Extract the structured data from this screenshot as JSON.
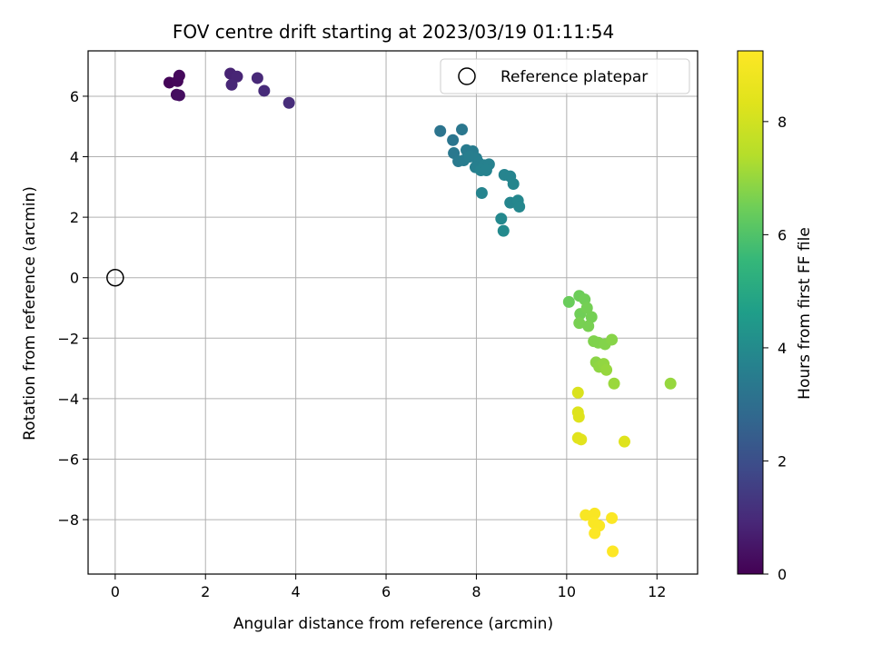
{
  "chart_data": {
    "type": "scatter",
    "title": "FOV centre drift starting at 2023/03/19 01:11:54",
    "xlabel": "Angular distance from reference (arcmin)",
    "ylabel": "Rotation from reference (arcmin)",
    "xlim": [
      -0.6,
      12.9
    ],
    "ylim": [
      -9.8,
      7.5
    ],
    "xticks": [
      0,
      2,
      4,
      6,
      8,
      10,
      12
    ],
    "yticks": [
      -8,
      -6,
      -4,
      -2,
      0,
      2,
      4,
      6
    ],
    "grid": true,
    "legend": {
      "position": "top-right",
      "entries": [
        "Reference platepar"
      ]
    },
    "reference_point": {
      "x": 0,
      "y": 0,
      "label": "Reference platepar"
    },
    "colorbar": {
      "label": "Hours from first FF file",
      "colormap": "viridis",
      "range": [
        0,
        9.25
      ],
      "ticks": [
        0,
        2,
        4,
        6,
        8
      ]
    },
    "series": [
      {
        "x": [
          1.2,
          1.38,
          1.42,
          1.36,
          1.42,
          2.55,
          2.7,
          2.58,
          3.15,
          3.3,
          3.85,
          7.2,
          7.48,
          7.68,
          7.5,
          7.6,
          7.78,
          7.92,
          7.72,
          7.85,
          8.0,
          8.05,
          7.98,
          8.18,
          8.28,
          8.1,
          8.22,
          8.62,
          8.75,
          8.82,
          8.75,
          8.92,
          8.95,
          8.12,
          8.55,
          8.6,
          10.05,
          10.28,
          10.4,
          10.3,
          10.45,
          10.55,
          10.28,
          10.48,
          10.6,
          10.7,
          10.85,
          11.0,
          10.65,
          10.72,
          10.82,
          10.88,
          11.05,
          12.3,
          10.25,
          10.25,
          10.27,
          10.25,
          10.32,
          11.28,
          10.42,
          10.62,
          10.6,
          10.72,
          11.0,
          10.62,
          11.02
        ],
        "y": [
          6.45,
          6.5,
          6.68,
          6.05,
          6.03,
          6.75,
          6.65,
          6.38,
          6.6,
          6.18,
          5.78,
          4.85,
          4.55,
          4.9,
          4.12,
          3.85,
          4.22,
          4.18,
          3.88,
          4.0,
          3.95,
          3.8,
          3.65,
          3.72,
          3.75,
          3.55,
          3.55,
          3.4,
          3.35,
          3.1,
          2.48,
          2.55,
          2.35,
          2.8,
          1.95,
          1.55,
          -0.8,
          -0.6,
          -0.72,
          -1.2,
          -1.0,
          -1.3,
          -1.5,
          -1.6,
          -2.1,
          -2.15,
          -2.2,
          -2.05,
          -2.8,
          -2.95,
          -2.85,
          -3.05,
          -3.5,
          -3.5,
          -3.8,
          -4.45,
          -4.6,
          -5.3,
          -5.35,
          -5.42,
          -7.85,
          -7.8,
          -8.1,
          -8.2,
          -7.95,
          -8.45,
          -9.05
        ],
        "hours": [
          0.1,
          0.15,
          0.2,
          0.25,
          0.3,
          0.8,
          0.85,
          0.9,
          0.95,
          1.0,
          1.05,
          3.2,
          3.25,
          3.3,
          3.35,
          3.4,
          3.45,
          3.5,
          3.5,
          3.55,
          3.55,
          3.6,
          3.6,
          3.65,
          3.65,
          3.7,
          3.7,
          3.75,
          3.75,
          3.8,
          3.8,
          3.85,
          3.85,
          3.75,
          3.9,
          3.95,
          6.4,
          6.45,
          6.5,
          6.5,
          6.55,
          6.55,
          6.6,
          6.6,
          6.7,
          6.7,
          6.75,
          6.8,
          6.85,
          6.9,
          6.95,
          7.0,
          7.05,
          7.0,
          8.2,
          8.25,
          8.3,
          8.35,
          8.4,
          8.3,
          9.1,
          9.12,
          9.15,
          9.17,
          9.2,
          9.22,
          9.25
        ]
      }
    ]
  }
}
